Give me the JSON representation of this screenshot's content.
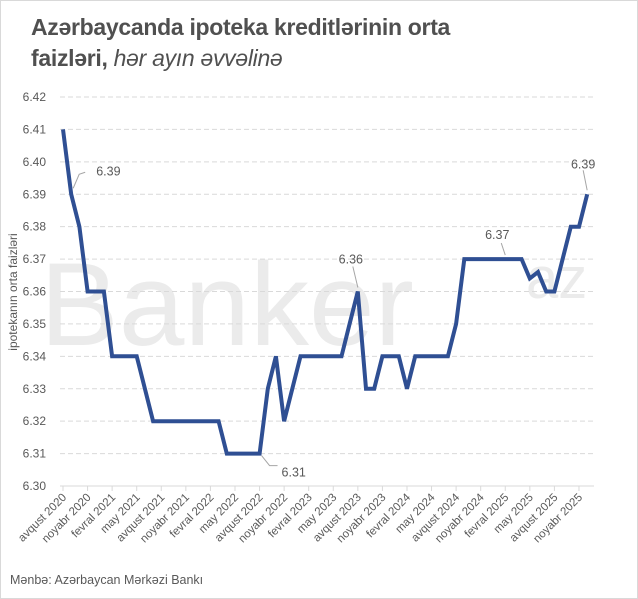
{
  "title": {
    "main": "Azərbaycanda ipoteka kreditlərinin orta faizləri,",
    "line1": "Azərbaycanda ipoteka kreditlərinin orta",
    "line2_bold": "faizləri,",
    "line2_italic": " hər ayın əvvəlinə"
  },
  "watermark": "Banker",
  "watermark_suffix": "az",
  "source": "Mənbə: Azərbaycan Mərkəzi Bankı",
  "colors": {
    "line": "#2f4f93",
    "grid": "#d9d9d9",
    "text": "#595959",
    "title": "#505050",
    "watermark": "#ebebeb"
  },
  "chart_data": {
    "type": "line",
    "title": "Azərbaycanda ipoteka kreditlərinin orta faizləri, hər ayın əvvəlinə",
    "xlabel": "",
    "ylabel": "ipotekanın orta faizləri",
    "ylim": [
      6.3,
      6.42
    ],
    "yticks": [
      "6.30",
      "6.31",
      "6.32",
      "6.33",
      "6.34",
      "6.35",
      "6.36",
      "6.37",
      "6.38",
      "6.39",
      "6.40",
      "6.41",
      "6.42"
    ],
    "grid": true,
    "legend": "none",
    "x_tick_labels": [
      "avqust 2020",
      "noyabr 2020",
      "fevral 2021",
      "may 2021",
      "avqust 2021",
      "noyabr 2021",
      "fevral 2022",
      "may 2022",
      "avqust 2022",
      "noyabr 2022",
      "fevral 2023",
      "may 2023",
      "avqust 2023",
      "noyabr 2023",
      "fevral 2024",
      "may 2024",
      "avqust 2024",
      "noyabr 2024",
      "fevral 2025",
      "may 2025",
      "avqust 2025",
      "noyabr 2025"
    ],
    "series": [
      {
        "name": "ipotekanın orta faizləri",
        "x": [
          "2020-08",
          "2020-09",
          "2020-10",
          "2020-11",
          "2020-12",
          "2021-01",
          "2021-02",
          "2021-03",
          "2021-04",
          "2021-05",
          "2021-06",
          "2021-07",
          "2021-08",
          "2021-09",
          "2021-10",
          "2021-11",
          "2021-12",
          "2022-01",
          "2022-02",
          "2022-03",
          "2022-04",
          "2022-05",
          "2022-06",
          "2022-07",
          "2022-08",
          "2022-09",
          "2022-10",
          "2022-11",
          "2022-12",
          "2023-01",
          "2023-02",
          "2023-03",
          "2023-04",
          "2023-05",
          "2023-06",
          "2023-07",
          "2023-08",
          "2023-09",
          "2023-10",
          "2023-11",
          "2023-12",
          "2024-01",
          "2024-02",
          "2024-03",
          "2024-04",
          "2024-05",
          "2024-06",
          "2024-07",
          "2024-08",
          "2024-09",
          "2024-10",
          "2024-11",
          "2024-12",
          "2025-01",
          "2025-02",
          "2025-03",
          "2025-04",
          "2025-05",
          "2025-06",
          "2025-07",
          "2025-08",
          "2025-09",
          "2025-10",
          "2025-11",
          "2025-12"
        ],
        "values": [
          6.41,
          6.39,
          6.38,
          6.36,
          6.36,
          6.36,
          6.34,
          6.34,
          6.34,
          6.34,
          6.33,
          6.32,
          6.32,
          6.32,
          6.32,
          6.32,
          6.32,
          6.32,
          6.32,
          6.32,
          6.31,
          6.31,
          6.31,
          6.31,
          6.31,
          6.33,
          6.34,
          6.32,
          6.33,
          6.34,
          6.34,
          6.34,
          6.34,
          6.34,
          6.34,
          6.35,
          6.36,
          6.33,
          6.33,
          6.34,
          6.34,
          6.34,
          6.33,
          6.34,
          6.34,
          6.34,
          6.34,
          6.34,
          6.35,
          6.37,
          6.37,
          6.37,
          6.37,
          6.37,
          6.37,
          6.37,
          6.37,
          6.364,
          6.366,
          6.36,
          6.36,
          6.37,
          6.38,
          6.38,
          6.39
        ]
      }
    ],
    "annotations": [
      {
        "label": "6.39",
        "index": 1
      },
      {
        "label": "6.31",
        "index": 24
      },
      {
        "label": "6.36",
        "index": 36
      },
      {
        "label": "6.37",
        "index": 54
      },
      {
        "label": "6.39",
        "index": 64
      }
    ]
  }
}
